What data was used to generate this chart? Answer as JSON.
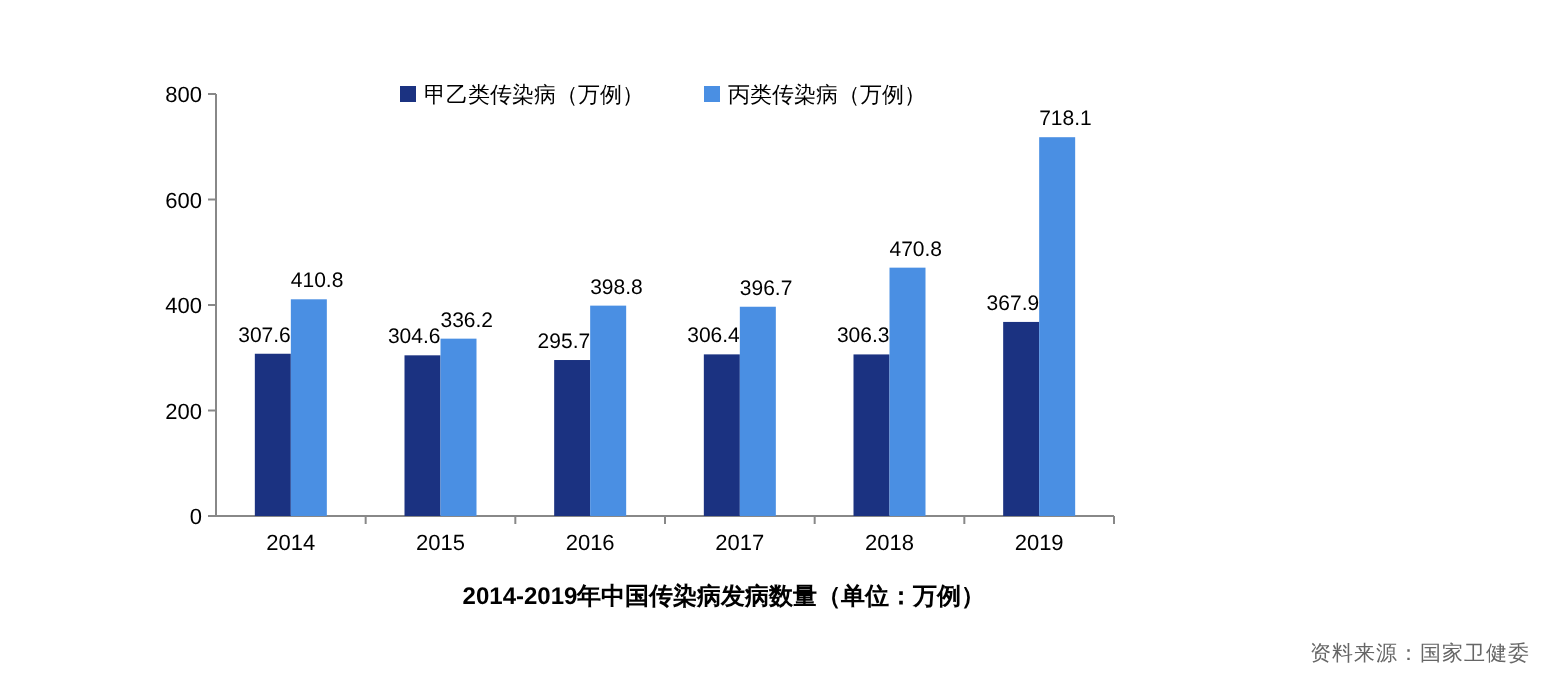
{
  "chart_data": {
    "type": "bar",
    "title": "2014-2019年中国传染病发病数量（单位：万例）",
    "categories": [
      "2014",
      "2015",
      "2016",
      "2017",
      "2018",
      "2019"
    ],
    "series": [
      {
        "name": "甲乙类传染病（万例）",
        "color": "#1b3281",
        "values": [
          307.6,
          304.6,
          295.7,
          306.4,
          306.3,
          367.9
        ]
      },
      {
        "name": "丙类传染病（万例）",
        "color": "#4a8fe3",
        "values": [
          410.8,
          336.2,
          398.8,
          396.7,
          470.8,
          718.1
        ]
      }
    ],
    "ylim": [
      0,
      800
    ],
    "yticks": [
      0,
      200,
      400,
      600,
      800
    ],
    "data_labels": true,
    "legend": "top",
    "annotations": [
      "资料来源：国家卫健委"
    ]
  }
}
